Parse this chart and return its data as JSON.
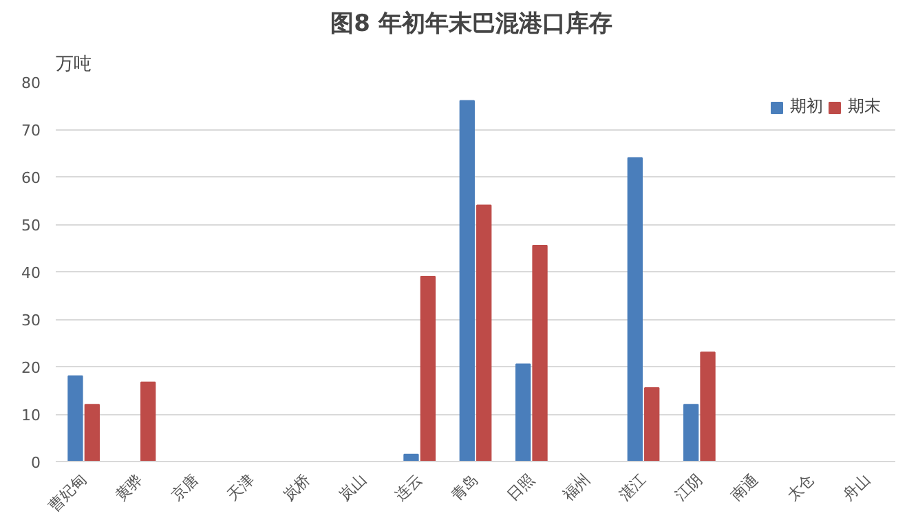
{
  "chart_data": {
    "type": "bar",
    "title": "图8  年初年末巴混港口库存",
    "ylabel": "万吨",
    "categories": [
      "曹妃甸",
      "黄骅",
      "京唐",
      "天津",
      "岚桥",
      "岚山",
      "连云",
      "青岛",
      "日照",
      "福州",
      "湛江",
      "江阴",
      "南通",
      "太仓",
      "舟山"
    ],
    "series": [
      {
        "name": "期初",
        "color": "#4a7ebb",
        "values": [
          18,
          null,
          null,
          null,
          null,
          null,
          1.5,
          76,
          20.5,
          null,
          64,
          12,
          null,
          null,
          null
        ]
      },
      {
        "name": "期末",
        "color": "#be4b48",
        "values": [
          12,
          16.7,
          null,
          null,
          null,
          null,
          39,
          54,
          45.5,
          null,
          15.5,
          23,
          null,
          null,
          null
        ]
      }
    ],
    "ylim": [
      0,
      80
    ],
    "yticks": [
      0,
      10,
      20,
      30,
      40,
      50,
      60,
      70,
      80
    ],
    "grid": "y",
    "legend": "top right"
  }
}
